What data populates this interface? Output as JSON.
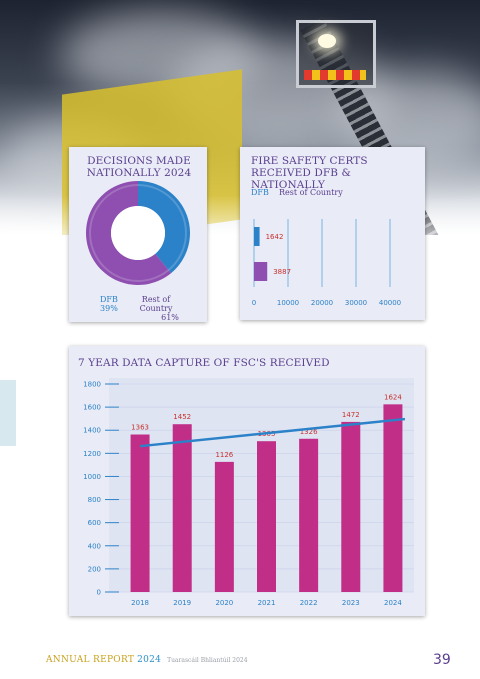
{
  "colors": {
    "purple": "#5a3e8e",
    "blue": "#2c82c8",
    "magenta": "#c12e87",
    "red_label": "#c8312d",
    "card_bg": "#e9ebf6"
  },
  "chart_data": [
    {
      "type": "pie",
      "title": "DECISIONS MADE NATIONALLY 2024",
      "labels": [
        "DFB",
        "Rest of Country"
      ],
      "values": [
        39,
        61
      ],
      "value_labels": [
        "39%",
        "61%"
      ],
      "colors": [
        "#2c82c8",
        "#8e4fb0"
      ]
    },
    {
      "type": "bar",
      "orientation": "horizontal",
      "title": "FIRE SAFETY CERTS RECEIVED DFB & NATIONALLY",
      "categories": [
        "DFB",
        "Rest of Country"
      ],
      "values": [
        1642,
        3887
      ],
      "colors": [
        "#2c82c8",
        "#8e4fb0"
      ],
      "xticks": [
        "0",
        "10000",
        "20000",
        "30000",
        "40000"
      ],
      "xlim": [
        0,
        40000
      ],
      "legend": "top-left"
    },
    {
      "type": "bar",
      "title": "7 YEAR DATA CAPTURE OF FSC'S RECEIVED",
      "categories": [
        "2018",
        "2019",
        "2020",
        "2021",
        "2022",
        "2023",
        "2024"
      ],
      "values": [
        1363,
        1452,
        1126,
        1305,
        1326,
        1472,
        1624
      ],
      "value_labels": [
        "1363",
        "1452",
        "1126",
        "1305",
        "1326",
        "1472",
        "1624"
      ],
      "yticks": [
        "0",
        "200",
        "400",
        "600",
        "800",
        "1000",
        "1200",
        "1400",
        "1600",
        "1800"
      ],
      "ylim": [
        0,
        1800
      ],
      "trendline": {
        "start": 1262,
        "end": 1497,
        "color": "#2c82c8"
      },
      "grid": true
    }
  ],
  "footer": {
    "annual_report": "ANNUAL REPORT",
    "year": "2024",
    "subtitle": "Tuarascáil Bhliantúil 2024",
    "page_number": "39"
  }
}
